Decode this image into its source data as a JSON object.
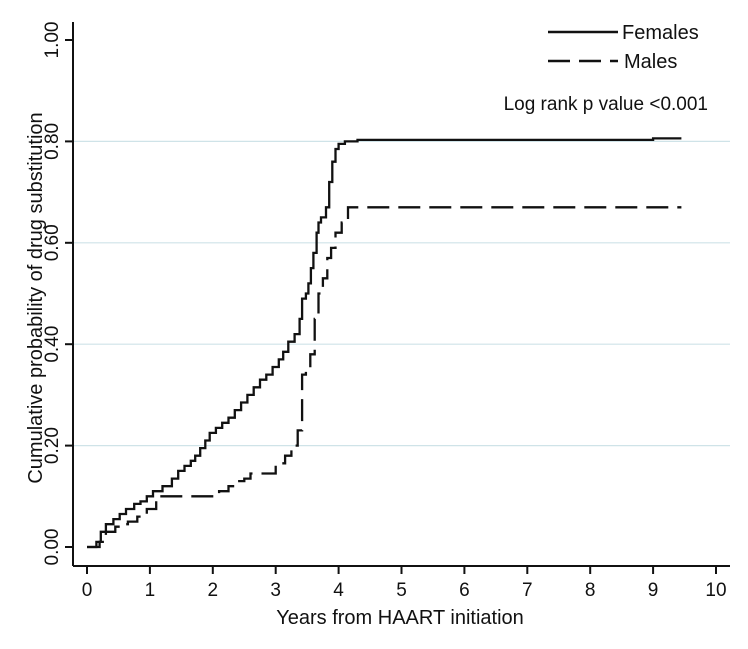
{
  "chart_data": {
    "type": "line",
    "title": "",
    "xlabel": "Years from HAART initiation",
    "ylabel": "Cumulative probability of drug substitution",
    "xlim": [
      0,
      10
    ],
    "ylim": [
      0,
      1
    ],
    "xticks": [
      0,
      1,
      2,
      3,
      4,
      5,
      6,
      7,
      8,
      9,
      10
    ],
    "xtick_labels": [
      "0",
      "1",
      "2",
      "3",
      "4",
      "5",
      "6",
      "7",
      "8",
      "9",
      "10"
    ],
    "yticks": [
      0,
      0.2,
      0.4,
      0.6,
      0.8,
      1.0
    ],
    "ytick_labels": [
      "0.00",
      "0.20",
      "0.40",
      "0.60",
      "0.80",
      "1.00"
    ],
    "grid": "horizontal",
    "legend_position": "top-right",
    "annotation": "Log rank p value <0.001",
    "colors": {
      "line": "#111111",
      "grid": "#cfe3e8",
      "axis": "#111111"
    },
    "series": [
      {
        "name": "Females",
        "style": "solid",
        "x": [
          0,
          0.15,
          0.15,
          0.22,
          0.22,
          0.3,
          0.3,
          0.42,
          0.42,
          0.52,
          0.52,
          0.62,
          0.62,
          0.75,
          0.75,
          0.85,
          0.85,
          0.95,
          0.95,
          1.05,
          1.05,
          1.2,
          1.2,
          1.35,
          1.35,
          1.45,
          1.45,
          1.55,
          1.55,
          1.65,
          1.65,
          1.72,
          1.72,
          1.8,
          1.8,
          1.88,
          1.88,
          1.95,
          1.95,
          2.05,
          2.05,
          2.15,
          2.15,
          2.25,
          2.25,
          2.35,
          2.35,
          2.45,
          2.45,
          2.55,
          2.55,
          2.65,
          2.65,
          2.75,
          2.75,
          2.85,
          2.85,
          2.95,
          2.95,
          3.05,
          3.05,
          3.12,
          3.12,
          3.2,
          3.2,
          3.3,
          3.3,
          3.38,
          3.38,
          3.42,
          3.42,
          3.48,
          3.48,
          3.52,
          3.52,
          3.56,
          3.56,
          3.6,
          3.6,
          3.65,
          3.65,
          3.68,
          3.68,
          3.72,
          3.72,
          3.8,
          3.8,
          3.85,
          3.85,
          3.9,
          3.9,
          3.95,
          3.95,
          4.0,
          4.0,
          4.1,
          4.1,
          4.3,
          4.3,
          5.0,
          9.0,
          9.0,
          9.45
        ],
        "y": [
          0,
          0,
          0.01,
          0.01,
          0.03,
          0.03,
          0.045,
          0.045,
          0.055,
          0.055,
          0.065,
          0.065,
          0.075,
          0.075,
          0.085,
          0.085,
          0.09,
          0.09,
          0.1,
          0.1,
          0.11,
          0.11,
          0.12,
          0.12,
          0.135,
          0.135,
          0.15,
          0.15,
          0.16,
          0.16,
          0.17,
          0.17,
          0.18,
          0.18,
          0.195,
          0.195,
          0.21,
          0.21,
          0.225,
          0.225,
          0.235,
          0.235,
          0.245,
          0.245,
          0.255,
          0.255,
          0.27,
          0.27,
          0.285,
          0.285,
          0.3,
          0.3,
          0.315,
          0.315,
          0.33,
          0.33,
          0.34,
          0.34,
          0.355,
          0.355,
          0.37,
          0.37,
          0.385,
          0.385,
          0.405,
          0.405,
          0.42,
          0.42,
          0.45,
          0.45,
          0.49,
          0.49,
          0.5,
          0.5,
          0.52,
          0.52,
          0.55,
          0.55,
          0.58,
          0.58,
          0.62,
          0.62,
          0.64,
          0.64,
          0.65,
          0.65,
          0.67,
          0.67,
          0.72,
          0.72,
          0.76,
          0.76,
          0.785,
          0.785,
          0.795,
          0.795,
          0.8,
          0.8,
          0.803,
          0.803,
          0.803,
          0.806,
          0.806
        ]
      },
      {
        "name": "Males",
        "style": "dashed",
        "x": [
          0,
          0.2,
          0.2,
          0.3,
          0.3,
          0.45,
          0.45,
          0.55,
          0.55,
          0.65,
          0.65,
          0.8,
          0.8,
          0.95,
          0.95,
          1.1,
          1.1,
          2.1,
          2.1,
          2.25,
          2.25,
          2.4,
          2.4,
          2.5,
          2.5,
          2.6,
          2.6,
          3.0,
          3.0,
          3.15,
          3.15,
          3.25,
          3.25,
          3.35,
          3.35,
          3.42,
          3.42,
          3.48,
          3.48,
          3.55,
          3.55,
          3.62,
          3.62,
          3.68,
          3.68,
          3.75,
          3.75,
          3.82,
          3.82,
          3.88,
          3.88,
          3.95,
          3.95,
          4.05,
          4.05,
          4.15,
          4.15,
          9.45
        ],
        "y": [
          0,
          0,
          0.01,
          0.01,
          0.03,
          0.03,
          0.04,
          0.04,
          0.045,
          0.045,
          0.05,
          0.05,
          0.06,
          0.06,
          0.075,
          0.075,
          0.1,
          0.1,
          0.11,
          0.11,
          0.12,
          0.12,
          0.13,
          0.13,
          0.135,
          0.135,
          0.145,
          0.145,
          0.165,
          0.165,
          0.18,
          0.18,
          0.2,
          0.2,
          0.23,
          0.23,
          0.34,
          0.34,
          0.35,
          0.35,
          0.38,
          0.38,
          0.45,
          0.45,
          0.5,
          0.5,
          0.53,
          0.53,
          0.57,
          0.57,
          0.59,
          0.59,
          0.62,
          0.62,
          0.64,
          0.64,
          0.67,
          0.67
        ]
      }
    ]
  }
}
